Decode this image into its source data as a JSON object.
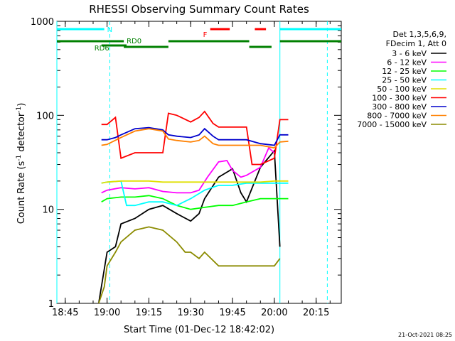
{
  "chart_data": {
    "type": "line",
    "title": "RHESSI Observing Summary Count Rates",
    "xlabel": "Start Time (01-Dec-12 18:42:02)",
    "ylabel": "Count Rate (s⁻¹ detector⁻¹)",
    "ylabel_main": "Count Rate (s",
    "ylabel_sup1": "-1",
    "ylabel_mid": " detector",
    "ylabel_sup2": "-1",
    "ylabel_end": ")",
    "yscale": "log",
    "xlim": [
      "18:42",
      "20:24"
    ],
    "ylim": [
      1,
      1000
    ],
    "x_ticks": [
      "18:45",
      "19:00",
      "19:15",
      "19:30",
      "19:45",
      "20:00",
      "20:15"
    ],
    "y_ticks": [
      "1",
      "10",
      "100",
      "1000"
    ],
    "legend_header": [
      "Det 1,3,5,6,9,",
      "FDecim 1, Att 0"
    ],
    "legend_position": "right",
    "footer_date": "21-Oct-2021 08:25",
    "series": [
      {
        "name": "3 - 6 keV",
        "color": "#000000",
        "x": [
          "18:57",
          "19:00",
          "19:03",
          "19:05",
          "19:10",
          "19:15",
          "19:20",
          "19:25",
          "19:30",
          "19:33",
          "19:35",
          "19:40",
          "19:45",
          "19:48",
          "19:50",
          "19:55",
          "20:00",
          "20:02"
        ],
        "values": [
          1,
          3.5,
          4,
          7,
          8,
          10,
          11,
          9,
          7.5,
          9,
          13,
          22,
          27,
          15,
          12,
          28,
          42,
          4
        ]
      },
      {
        "name": "6 - 12 keV",
        "color": "#ff00ff",
        "x": [
          "18:58",
          "19:00",
          "19:05",
          "19:10",
          "19:15",
          "19:20",
          "19:25",
          "19:30",
          "19:33",
          "19:36",
          "19:40",
          "19:43",
          "19:45",
          "19:48",
          "19:50",
          "19:55",
          "19:58",
          "20:00"
        ],
        "values": [
          15,
          16,
          17,
          16.5,
          17,
          15.5,
          15,
          15,
          16,
          22,
          32,
          33,
          26,
          22,
          23,
          28,
          45,
          40
        ]
      },
      {
        "name": "12 - 25 keV",
        "color": "#00ff00",
        "x": [
          "18:58",
          "19:00",
          "19:05",
          "19:10",
          "19:15",
          "19:20",
          "19:25",
          "19:30",
          "19:35",
          "19:40",
          "19:45",
          "19:50",
          "19:55",
          "20:00",
          "20:02",
          "20:05"
        ],
        "values": [
          12,
          13,
          13.5,
          13.5,
          14,
          13,
          11,
          10,
          10.5,
          11,
          11,
          12,
          13,
          13,
          13,
          13
        ]
      },
      {
        "name": "25 - 50 keV",
        "color": "#00ffff",
        "x": [
          "18:58",
          "19:00",
          "19:05",
          "19:07",
          "19:10",
          "19:15",
          "19:20",
          "19:25",
          "19:30",
          "19:35",
          "19:40",
          "19:45",
          "19:50",
          "19:55",
          "20:00",
          "20:02",
          "20:05"
        ],
        "values": [
          19,
          19.5,
          20,
          11,
          11,
          12,
          12,
          11,
          13,
          16,
          18,
          18,
          19,
          19,
          19,
          19,
          19
        ]
      },
      {
        "name": "50 - 100 keV",
        "color": "#e0e000",
        "x": [
          "18:58",
          "19:00",
          "19:05",
          "19:10",
          "19:15",
          "19:20",
          "19:25",
          "19:30",
          "19:35",
          "19:40",
          "19:45",
          "19:50",
          "19:55",
          "20:00",
          "20:02",
          "20:05"
        ],
        "values": [
          19,
          19.5,
          20,
          20,
          20,
          19.5,
          19.5,
          19.5,
          19.5,
          19.5,
          19.5,
          19.5,
          19.5,
          20,
          20,
          20
        ]
      },
      {
        "name": "100 - 300 keV",
        "color": "#ff0000",
        "x": [
          "18:58",
          "19:00",
          "19:03",
          "19:05",
          "19:10",
          "19:15",
          "19:20",
          "19:22",
          "19:25",
          "19:30",
          "19:33",
          "19:35",
          "19:38",
          "19:40",
          "19:45",
          "19:50",
          "19:52",
          "19:55",
          "20:00",
          "20:02",
          "20:05"
        ],
        "values": [
          80,
          80,
          95,
          35,
          40,
          40,
          40,
          105,
          100,
          85,
          95,
          110,
          82,
          75,
          75,
          75,
          30,
          30,
          35,
          90,
          90
        ]
      },
      {
        "name": "300 - 800 keV",
        "color": "#0000cc",
        "x": [
          "18:58",
          "19:00",
          "19:03",
          "19:05",
          "19:10",
          "19:15",
          "19:20",
          "19:22",
          "19:25",
          "19:30",
          "19:33",
          "19:35",
          "19:38",
          "19:40",
          "19:45",
          "19:50",
          "19:55",
          "20:00",
          "20:02",
          "20:05"
        ],
        "values": [
          55,
          55,
          58,
          62,
          72,
          74,
          70,
          62,
          60,
          58,
          62,
          72,
          60,
          55,
          55,
          55,
          50,
          48,
          62,
          62
        ]
      },
      {
        "name": "800 - 7000 keV",
        "color": "#ff8000",
        "x": [
          "18:58",
          "19:00",
          "19:05",
          "19:10",
          "19:15",
          "19:20",
          "19:22",
          "19:25",
          "19:30",
          "19:33",
          "19:35",
          "19:38",
          "19:40",
          "19:45",
          "19:50",
          "19:55",
          "20:00",
          "20:02",
          "20:05"
        ],
        "values": [
          48,
          49,
          58,
          68,
          72,
          68,
          56,
          54,
          52,
          54,
          60,
          50,
          48,
          48,
          48,
          48,
          45,
          52,
          53
        ]
      },
      {
        "name": "7000 - 15000 keV",
        "color": "#8b8b00",
        "x": [
          "18:57",
          "18:59",
          "19:00",
          "19:03",
          "19:05",
          "19:10",
          "19:15",
          "19:20",
          "19:25",
          "19:28",
          "19:30",
          "19:33",
          "19:35",
          "19:40",
          "19:45",
          "19:50",
          "19:55",
          "20:00",
          "20:02"
        ],
        "values": [
          1,
          1.5,
          2.5,
          3.5,
          4.5,
          6,
          6.5,
          6,
          4.5,
          3.5,
          3.5,
          3,
          3.5,
          2.5,
          2.5,
          2.5,
          2.5,
          2.5,
          3
        ]
      }
    ],
    "annotations": [
      {
        "label": "N",
        "color": "#00ffff",
        "segments": [
          [
            "18:42",
            "18:59"
          ],
          [
            "20:02",
            "20:24"
          ]
        ],
        "level": "top"
      },
      {
        "label": "F",
        "color": "#ff0000",
        "segments": [
          [
            "19:37",
            "19:44"
          ],
          [
            "19:53",
            "19:57"
          ]
        ],
        "level": "top"
      },
      {
        "label": "RD0",
        "color": "#008000",
        "segments": [
          [
            "18:42",
            "19:06"
          ],
          [
            "19:06",
            "19:22"
          ],
          [
            "19:22",
            "19:51"
          ],
          [
            "19:51",
            "19:59"
          ],
          [
            "20:02",
            "20:24"
          ]
        ],
        "level": "upper"
      },
      {
        "label": "RD6",
        "color": "#008000",
        "segments": [
          [
            "18:58",
            "19:07"
          ]
        ],
        "level": "lower"
      }
    ],
    "vertical_lines": [
      {
        "x": "18:42",
        "color": "#00ffff",
        "style": "solid"
      },
      {
        "x": "19:01",
        "color": "#00ffff",
        "style": "dashed"
      },
      {
        "x": "20:02",
        "color": "#00ffff",
        "style": "solid"
      },
      {
        "x": "20:19",
        "color": "#00ffff",
        "style": "dashed"
      }
    ]
  }
}
